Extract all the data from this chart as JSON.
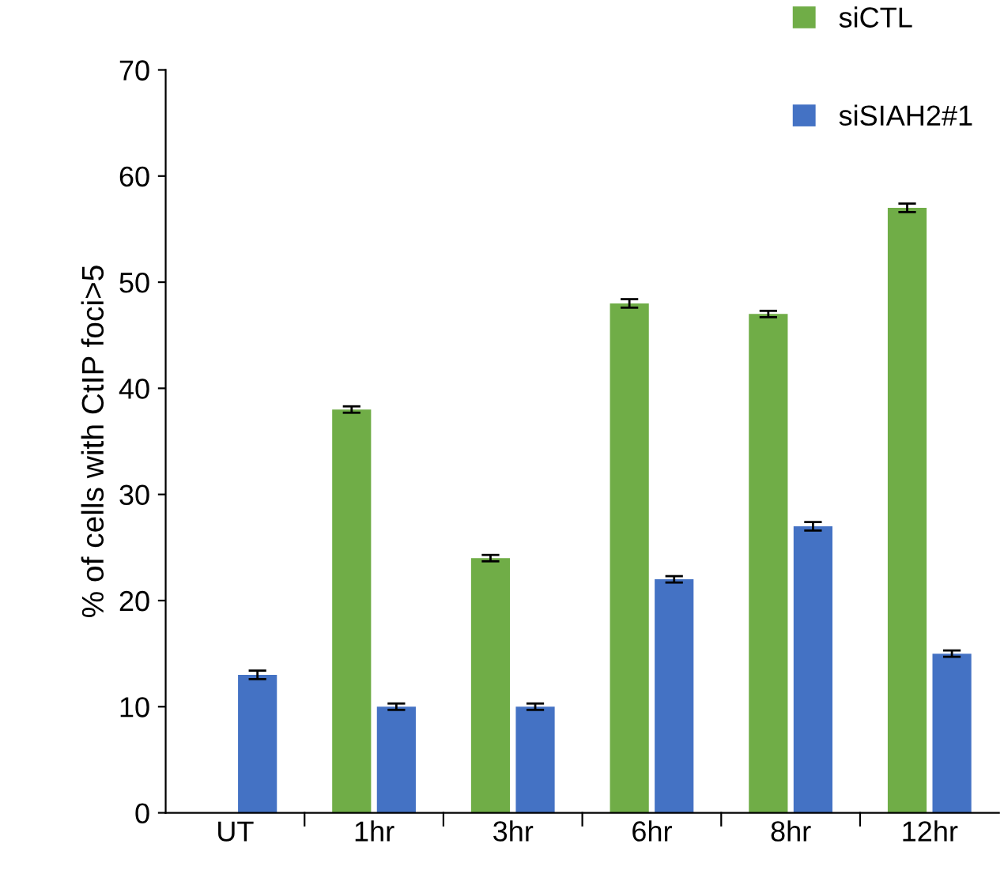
{
  "chart_data": {
    "type": "bar",
    "ylabel": "% of cells with CtIP foci>5",
    "categories": [
      "UT",
      "1hr",
      "3hr",
      "6hr",
      "8hr",
      "12hr"
    ],
    "series": [
      {
        "name": "siCTL",
        "color": "#70ad47",
        "values": [
          null,
          38,
          24,
          48,
          47,
          57
        ],
        "errors": [
          null,
          0.3,
          0.3,
          0.4,
          0.3,
          0.4
        ]
      },
      {
        "name": "siSIAH2#1",
        "color": "#4472c4",
        "values": [
          13,
          10,
          10,
          22,
          27,
          15
        ],
        "errors": [
          0.4,
          0.3,
          0.3,
          0.3,
          0.4,
          0.3
        ]
      }
    ],
    "ylim": [
      0,
      70
    ],
    "yticks": [
      0,
      10,
      20,
      30,
      40,
      50,
      60,
      70
    ],
    "grid": false,
    "legend": "top right"
  }
}
